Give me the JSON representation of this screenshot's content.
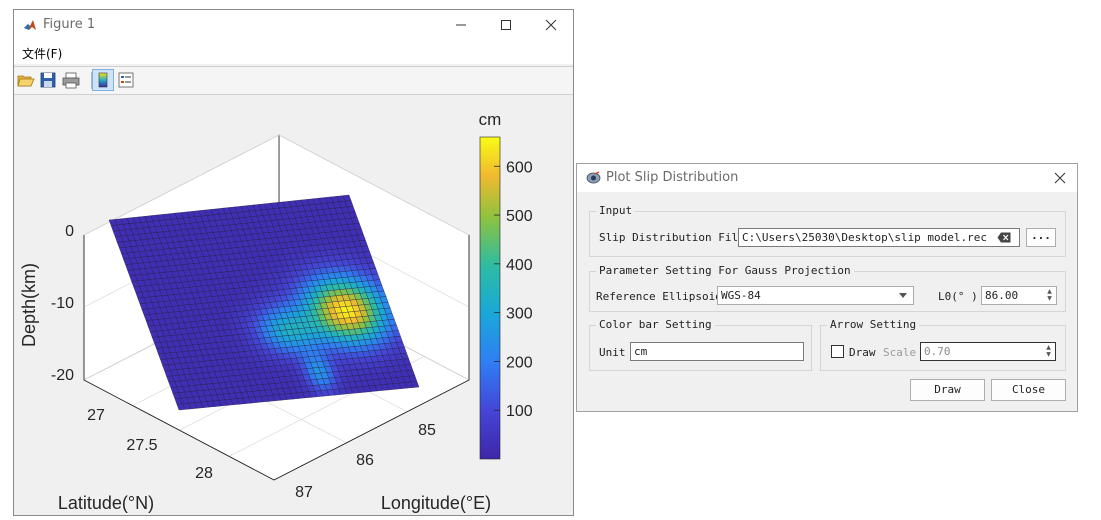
{
  "figure_window": {
    "title": "Figure 1",
    "menu": {
      "file": "文件(F)"
    },
    "toolbar": [
      "open-icon",
      "save-icon",
      "print-icon",
      "colorbar-toggle-icon",
      "legend-toggle-icon"
    ]
  },
  "chart_data": {
    "type": "surface",
    "title": "",
    "xlabel": "Longitude(°E)",
    "ylabel": "Latitude(°N)",
    "zlabel": "Depth(km)",
    "x_ticks": [
      "85",
      "86",
      "87"
    ],
    "y_ticks": [
      "27",
      "27.5",
      "28"
    ],
    "z_ticks": [
      "0",
      "-10",
      "-20"
    ],
    "zlim": [
      -23,
      2
    ],
    "colormap": "parula",
    "colorbar": {
      "label": "cm",
      "ticks": [
        "100",
        "200",
        "300",
        "400",
        "500",
        "600"
      ],
      "tick_values": [
        100,
        200,
        300,
        400,
        500,
        600
      ],
      "range": [
        0,
        660
      ]
    },
    "slip_peak_cm": 620,
    "grid": true
  },
  "dialog": {
    "title": "Plot Slip Distribution",
    "input": {
      "legend": "Input",
      "file_label": "Slip Distribution File",
      "file_value": "C:\\Users\\25030\\Desktop\\slip model.rec",
      "browse_label": "..."
    },
    "projection": {
      "legend": "Parameter Setting For Gauss Projection",
      "ellipsoid_label": "Reference Ellipsoid",
      "ellipsoid_value": "WGS-84",
      "l0_label": "L0(° )",
      "l0_value": "86.00"
    },
    "colorbar_setting": {
      "legend": "Color bar Setting",
      "unit_label": "Unit",
      "unit_value": "cm"
    },
    "arrow_setting": {
      "legend": "Arrow Setting",
      "draw_label": "Draw",
      "scale_label": "Scale",
      "scale_value": "0.70"
    },
    "buttons": {
      "draw": "Draw",
      "close": "Close"
    }
  }
}
